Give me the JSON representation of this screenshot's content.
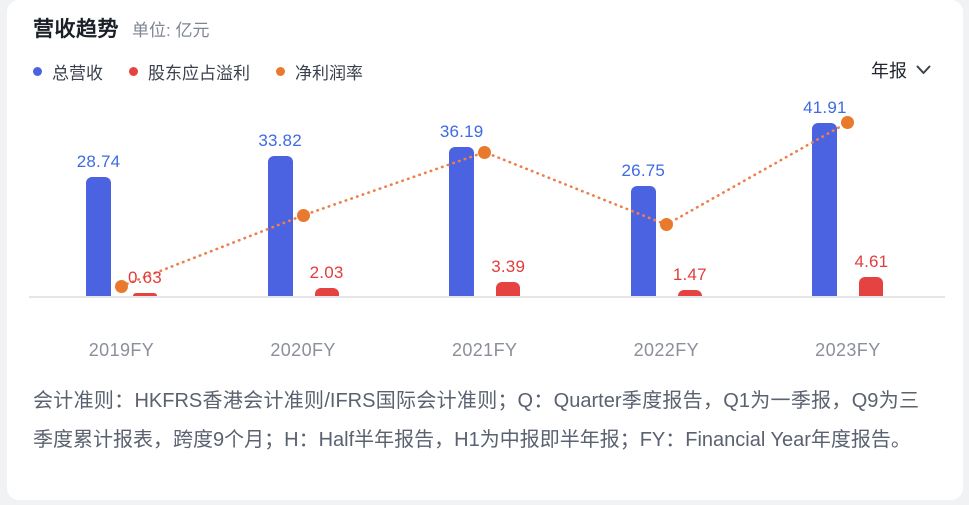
{
  "header": {
    "title": "营收趋势",
    "unit": "单位: 亿元"
  },
  "legend": {
    "items": [
      {
        "label": "总营收",
        "color": "#4c63e1",
        "icon": "legend-dot-blue-icon"
      },
      {
        "label": "股东应占溢利",
        "color": "#e54242",
        "icon": "legend-dot-red-icon"
      },
      {
        "label": "净利润率",
        "color": "#e9792d",
        "icon": "legend-dot-orange-icon"
      }
    ]
  },
  "period_selector": {
    "label": "年报",
    "icon": "chevron-down-icon"
  },
  "chart_data": {
    "type": "bar",
    "title": "营收趋势",
    "unit": "亿元",
    "categories": [
      "2019FY",
      "2020FY",
      "2021FY",
      "2022FY",
      "2023FY"
    ],
    "series": [
      {
        "name": "总营收",
        "type": "bar",
        "color": "#4c63e1",
        "label_color": "#3e6ae4",
        "values": [
          28.74,
          33.82,
          36.19,
          26.75,
          41.91
        ],
        "labels_shown": true
      },
      {
        "name": "股东应占溢利",
        "type": "bar",
        "color": "#e54242",
        "label_color": "#e33c3c",
        "values": [
          0.63,
          2.03,
          3.39,
          1.47,
          4.61
        ],
        "labels_shown": true
      },
      {
        "name": "净利润率",
        "type": "line",
        "style": "dotted",
        "unit": "%",
        "dot_color": "#e9792d",
        "line_color": "#ee7f4b",
        "values": [
          2.2,
          6.0,
          9.4,
          5.5,
          11.0
        ],
        "estimated": true,
        "labels_shown": false
      }
    ],
    "value_labels_shown": true,
    "grid": false,
    "axis_line_only_baseline": true,
    "legend_position": "top-left"
  },
  "footnote": {
    "text": "会计准则：HKFRS香港会计准则/IFRS国际会计准则；Q：Quarter季度报告，Q1为一季报，Q9为三季度累计报表，跨度9个月；H：Half半年报告，H1为中报即半年报；FY：Financial Year年度报告。"
  }
}
